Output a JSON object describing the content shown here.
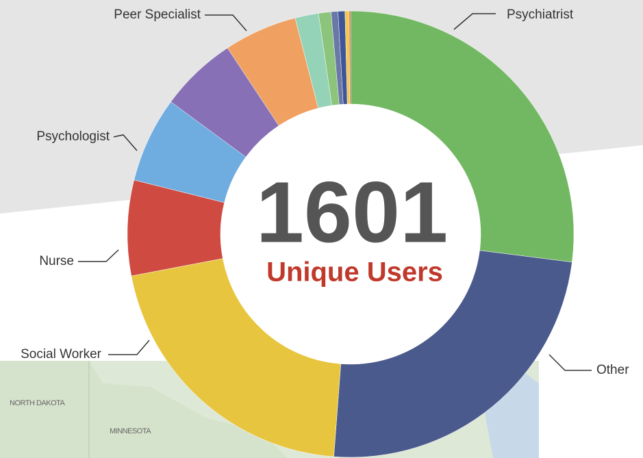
{
  "chart_data": {
    "type": "pie",
    "center_label": "1601",
    "center_sublabel": "Unique Users",
    "categories": [
      "Psychiatrist",
      "Other",
      "Social Worker",
      "Nurse",
      "Psychologist",
      null,
      "Peer Specialist",
      null,
      null,
      null,
      null,
      null,
      null
    ],
    "values": [
      27.0,
      24.2,
      20.8,
      6.9,
      6.2,
      5.6,
      5.3,
      1.7,
      0.9,
      0.5,
      0.5,
      0.3,
      0.1
    ],
    "colors": [
      "#72b862",
      "#4a5a8c",
      "#e8c53f",
      "#cf4b42",
      "#6fade0",
      "#8770b5",
      "#f0a060",
      "#95d3b8",
      "#8bc47a",
      "#6a78a8",
      "#3f5597",
      "#f2c94c",
      "#d9534f"
    ]
  },
  "background": {
    "map_labels": [
      "NORTH DAKOTA",
      "MINNESOTA"
    ]
  }
}
